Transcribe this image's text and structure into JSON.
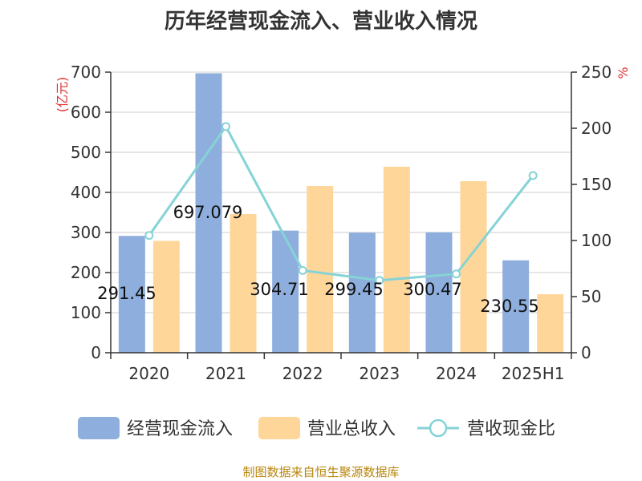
{
  "chart_data": {
    "type": "bar",
    "title": "历年经营现金流入、营业收入情况",
    "categories": [
      "2020",
      "2021",
      "2022",
      "2023",
      "2024",
      "2025H1"
    ],
    "left_axis": {
      "unit": "(亿元)",
      "ylim": [
        0,
        700
      ],
      "ticks": [
        0,
        100,
        200,
        300,
        400,
        500,
        600,
        700
      ]
    },
    "right_axis": {
      "unit": "%",
      "ylim": [
        0,
        250
      ],
      "ticks": [
        0,
        50,
        100,
        150,
        200,
        250
      ]
    },
    "series": [
      {
        "name": "经营现金流入",
        "type": "bar",
        "axis": "left",
        "color": "#8eaedd",
        "values": [
          291.45,
          697.079,
          304.71,
          299.45,
          300.47,
          230.55
        ],
        "labels": [
          "291.45",
          "697.079",
          "304.71",
          "299.45",
          "300.47",
          "230.55"
        ]
      },
      {
        "name": "营业总收入",
        "type": "bar",
        "axis": "left",
        "color": "#ffd699",
        "values": [
          279,
          346,
          416,
          464,
          428,
          146
        ]
      },
      {
        "name": "营收现金比",
        "type": "line",
        "axis": "right",
        "color": "#86d3d6",
        "values": [
          104.5,
          201.5,
          73.3,
          64.5,
          70.2,
          157.9
        ]
      }
    ],
    "grid": true,
    "legend_position": "bottom"
  },
  "footer": {
    "source": "制图数据来自恒生聚源数据库"
  }
}
